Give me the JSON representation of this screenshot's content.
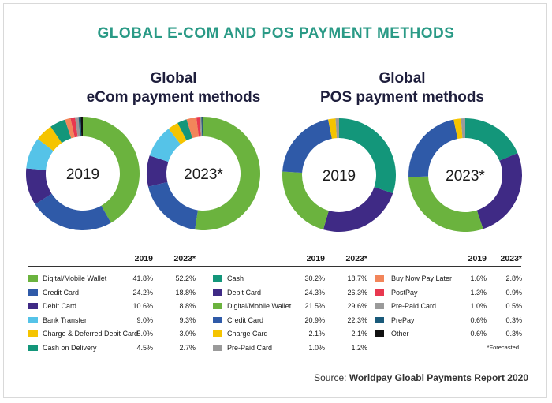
{
  "title": "GLOBAL E-COM AND POS PAYMENT METHODS",
  "sections": {
    "ecom_title": "Global\neCom payment methods",
    "pos_title": "Global\nPOS payment methods"
  },
  "headers": {
    "y2019": "2019",
    "y2023": "2023*"
  },
  "footnote": "*Forecasted",
  "source": {
    "prefix": "Source:",
    "name": "Worldpay Gloabl Payments Report 2020"
  },
  "chart_data": [
    {
      "type": "pie",
      "title": "Global eCom payment methods",
      "center_labels": [
        "2019",
        "2023*"
      ],
      "categories": [
        "Digital/Mobile Wallet",
        "Credit Card",
        "Debit Card",
        "Bank Transfer",
        "Charge & Deferred Debit Card",
        "Cash on Delivery",
        "Buy Now Pay Later",
        "PostPay",
        "Pre-Paid Card",
        "PrePay",
        "Other"
      ],
      "colors": [
        "#6bb33e",
        "#2f5aa8",
        "#3f2a85",
        "#55c3e8",
        "#f5c400",
        "#13967a",
        "#f2855a",
        "#e8384f",
        "#9a9a9a",
        "#1a5a7a",
        "#111111"
      ],
      "series": [
        {
          "name": "2019",
          "values": [
            41.8,
            24.2,
            10.6,
            9.0,
            5.0,
            4.5,
            1.6,
            1.3,
            1.0,
            0.6,
            0.6
          ]
        },
        {
          "name": "2023*",
          "values": [
            52.2,
            18.8,
            8.8,
            9.3,
            3.0,
            2.7,
            2.8,
            0.9,
            0.5,
            0.3,
            0.3
          ]
        }
      ]
    },
    {
      "type": "pie",
      "title": "Global POS payment methods",
      "center_labels": [
        "2019",
        "2023*"
      ],
      "categories": [
        "Cash",
        "Debit Card",
        "Digital/Mobile Wallet",
        "Credit Card",
        "Charge Card",
        "Pre-Paid Card"
      ],
      "colors": [
        "#13967a",
        "#3f2a85",
        "#6bb33e",
        "#2f5aa8",
        "#f5c400",
        "#9a9a9a"
      ],
      "series": [
        {
          "name": "2019",
          "values": [
            30.2,
            24.3,
            21.5,
            20.9,
            2.1,
            1.0
          ]
        },
        {
          "name": "2023*",
          "values": [
            18.7,
            26.3,
            29.6,
            22.3,
            2.1,
            1.2
          ]
        }
      ]
    }
  ]
}
